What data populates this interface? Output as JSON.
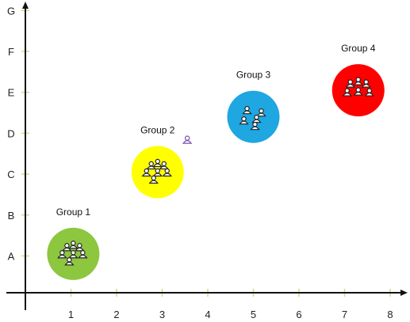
{
  "chart_data": {
    "type": "scatter",
    "x_ticks": [
      "1",
      "2",
      "3",
      "4",
      "5",
      "6",
      "7",
      "8"
    ],
    "y_ticks": [
      "A",
      "B",
      "C",
      "D",
      "E",
      "F",
      "G"
    ],
    "xlim": [
      0,
      8.3
    ],
    "ylim": [
      0,
      7.35
    ],
    "groups": [
      {
        "label": "Group 1",
        "x": 1.05,
        "y": 0.95,
        "color": "#8dc63f",
        "people": 7
      },
      {
        "label": "Group 2",
        "x": 2.9,
        "y": 2.95,
        "color": "#ffff00",
        "people": 7
      },
      {
        "label": "Group 3",
        "x": 5.0,
        "y": 4.3,
        "color": "#1ea7e1",
        "people": 5
      },
      {
        "label": "Group 4",
        "x": 7.3,
        "y": 4.95,
        "color": "#ff0000",
        "people": 6
      }
    ],
    "single_person": {
      "x": 3.55,
      "y": 3.75,
      "color": "#7a4fa8"
    },
    "axis_color": "#111111",
    "tick_color": "#c8dc8c"
  }
}
